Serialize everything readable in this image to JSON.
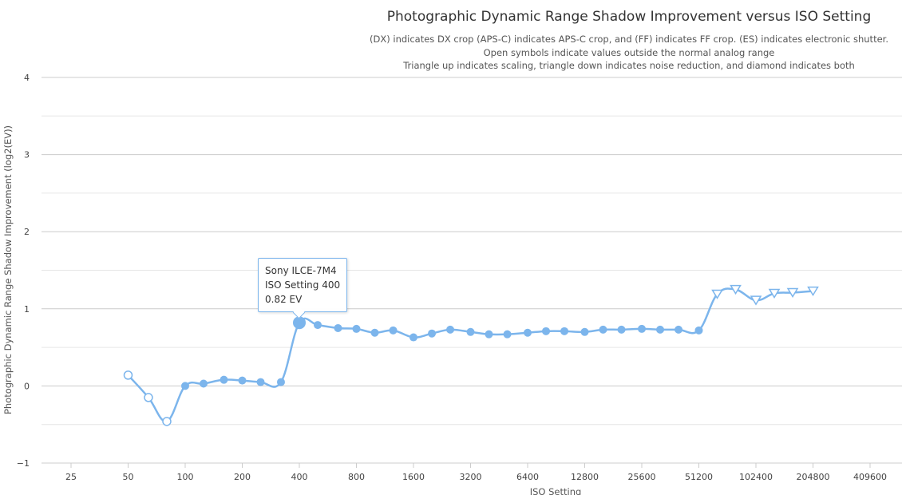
{
  "chart_data": {
    "type": "line",
    "title": "Photographic Dynamic Range Shadow Improvement versus ISO Setting",
    "subtitle_lines": [
      "(DX) indicates DX crop (APS-C) indicates APS-C crop, and (FF) indicates FF crop. (ES) indicates electronic shutter.",
      "Open symbols indicate values outside the normal analog range",
      "Triangle up indicates scaling, triangle down indicates noise reduction, and diamond indicates both"
    ],
    "xlabel": "ISO Setting",
    "ylabel": "Photographic Dynamic Range Shadow Improvement (log2(EV))",
    "x_scale": "log2",
    "x_ticks": [
      25,
      50,
      100,
      200,
      400,
      800,
      1600,
      3200,
      6400,
      12800,
      25600,
      51200,
      102400,
      204800,
      409600
    ],
    "x_tick_labels": [
      "25",
      "50",
      "100",
      "200",
      "400",
      "800",
      "1600",
      "3200",
      "6400",
      "12800",
      "25600",
      "51200",
      "102400",
      "204800",
      "409600"
    ],
    "y_ticks": [
      -1,
      0,
      1,
      2,
      3,
      4
    ],
    "y_tick_labels": [
      "−1",
      "0",
      "1",
      "2",
      "3",
      "4"
    ],
    "ylim": [
      -1,
      4
    ],
    "color": "#7cb5ec",
    "series": [
      {
        "name": "Sony ILCE-7M4",
        "points": [
          {
            "x": 50,
            "y": 0.14,
            "marker": "open-circle"
          },
          {
            "x": 64,
            "y": -0.15,
            "marker": "open-circle"
          },
          {
            "x": 80,
            "y": -0.46,
            "marker": "open-circle"
          },
          {
            "x": 100,
            "y": 0.0,
            "marker": "circle"
          },
          {
            "x": 125,
            "y": 0.03,
            "marker": "circle"
          },
          {
            "x": 160,
            "y": 0.08,
            "marker": "circle"
          },
          {
            "x": 200,
            "y": 0.07,
            "marker": "circle"
          },
          {
            "x": 250,
            "y": 0.05,
            "marker": "circle"
          },
          {
            "x": 320,
            "y": 0.05,
            "marker": "circle"
          },
          {
            "x": 400,
            "y": 0.82,
            "marker": "circle"
          },
          {
            "x": 500,
            "y": 0.79,
            "marker": "circle"
          },
          {
            "x": 640,
            "y": 0.75,
            "marker": "circle"
          },
          {
            "x": 800,
            "y": 0.74,
            "marker": "circle"
          },
          {
            "x": 1000,
            "y": 0.69,
            "marker": "circle"
          },
          {
            "x": 1250,
            "y": 0.72,
            "marker": "circle"
          },
          {
            "x": 1600,
            "y": 0.63,
            "marker": "circle"
          },
          {
            "x": 2000,
            "y": 0.68,
            "marker": "circle"
          },
          {
            "x": 2500,
            "y": 0.73,
            "marker": "circle"
          },
          {
            "x": 3200,
            "y": 0.7,
            "marker": "circle"
          },
          {
            "x": 4000,
            "y": 0.67,
            "marker": "circle"
          },
          {
            "x": 5000,
            "y": 0.67,
            "marker": "circle"
          },
          {
            "x": 6400,
            "y": 0.69,
            "marker": "circle"
          },
          {
            "x": 8000,
            "y": 0.71,
            "marker": "circle"
          },
          {
            "x": 10000,
            "y": 0.71,
            "marker": "circle"
          },
          {
            "x": 12800,
            "y": 0.7,
            "marker": "circle"
          },
          {
            "x": 16000,
            "y": 0.73,
            "marker": "circle"
          },
          {
            "x": 20000,
            "y": 0.73,
            "marker": "circle"
          },
          {
            "x": 25600,
            "y": 0.74,
            "marker": "circle"
          },
          {
            "x": 32000,
            "y": 0.73,
            "marker": "circle"
          },
          {
            "x": 40000,
            "y": 0.73,
            "marker": "circle"
          },
          {
            "x": 51200,
            "y": 0.72,
            "marker": "circle"
          },
          {
            "x": 64000,
            "y": 1.19,
            "marker": "open-triangle-down"
          },
          {
            "x": 80000,
            "y": 1.25,
            "marker": "open-triangle-down"
          },
          {
            "x": 102400,
            "y": 1.11,
            "marker": "open-triangle-down"
          },
          {
            "x": 128000,
            "y": 1.2,
            "marker": "open-triangle-down"
          },
          {
            "x": 160000,
            "y": 1.21,
            "marker": "open-triangle-down"
          },
          {
            "x": 204800,
            "y": 1.23,
            "marker": "open-triangle-down"
          }
        ]
      }
    ],
    "tooltip": {
      "line1": "Sony ILCE-7M4",
      "line2": "ISO Setting 400",
      "line3": "0.82 EV",
      "x": 400,
      "y": 0.82
    }
  }
}
